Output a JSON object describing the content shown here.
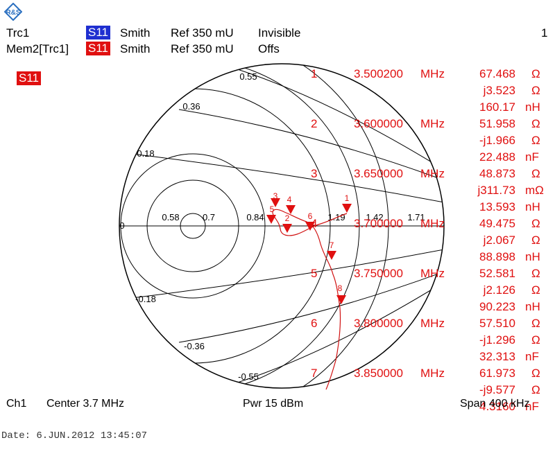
{
  "header": {
    "trace1": {
      "name": "Trc1",
      "param": "S11",
      "format": "Smith",
      "ref": "Ref 350 mU",
      "state": "Invisible",
      "color": "#1f2fd0"
    },
    "trace2": {
      "name": "Mem2[Trc1]",
      "param": "S11",
      "format": "Smith",
      "ref": "Ref 350 mU",
      "state": "Offs",
      "color": "#e01010"
    },
    "page_number": "1",
    "param_tag": "S11"
  },
  "smith": {
    "resistance_labels": [
      "0.58",
      "0.7",
      "0.84",
      "1.19",
      "1.42",
      "1.71"
    ],
    "reactance_labels": [
      "0.55",
      "0.36",
      "0.18",
      "0",
      "-0.18",
      "-0.36",
      "-0.55"
    ]
  },
  "markers_on_chart": [
    "1",
    "2",
    "4",
    "5",
    "6",
    "7",
    "8",
    "3"
  ],
  "marker_table": [
    {
      "num": "1",
      "freq": "3.500200",
      "unit": "MHz",
      "vals": [
        [
          "67.468",
          "Ω"
        ],
        [
          "j3.523",
          "Ω"
        ],
        [
          "160.17",
          "nH"
        ]
      ]
    },
    {
      "num": "2",
      "freq": "3.600000",
      "unit": "MHz",
      "vals": [
        [
          "51.958",
          "Ω"
        ],
        [
          "-j1.966",
          "Ω"
        ],
        [
          "22.488",
          "nF"
        ]
      ]
    },
    {
      "num": "3",
      "freq": "3.650000",
      "unit": "MHz",
      "vals": [
        [
          "48.873",
          "Ω"
        ],
        [
          "j311.73",
          "mΩ"
        ],
        [
          "13.593",
          "nH"
        ]
      ]
    },
    {
      "num": "4",
      "freq": "3.700000",
      "unit": "MHz",
      "vals": [
        [
          "49.475",
          "Ω"
        ],
        [
          "j2.067",
          "Ω"
        ],
        [
          "88.898",
          "nH"
        ]
      ]
    },
    {
      "num": "5",
      "freq": "3.750000",
      "unit": "MHz",
      "vals": [
        [
          "52.581",
          "Ω"
        ],
        [
          "j2.126",
          "Ω"
        ],
        [
          "90.223",
          "nH"
        ]
      ]
    },
    {
      "num": "6",
      "freq": "3.800000",
      "unit": "MHz",
      "vals": [
        [
          "57.510",
          "Ω"
        ],
        [
          "-j1.296",
          "Ω"
        ],
        [
          "32.313",
          "nF"
        ]
      ]
    },
    {
      "num": "7",
      "freq": "3.850000",
      "unit": "MHz",
      "vals": [
        [
          "61.973",
          "Ω"
        ],
        [
          "-j9.577",
          "Ω"
        ],
        [
          "4.3160",
          "nF"
        ]
      ]
    }
  ],
  "footer": {
    "channel": "Ch1",
    "center": "Center  3.7 MHz",
    "power": "Pwr  15 dBm",
    "span": "Span 400 kHz",
    "date": "Date:  6.JUN.2012   13:45:07"
  }
}
